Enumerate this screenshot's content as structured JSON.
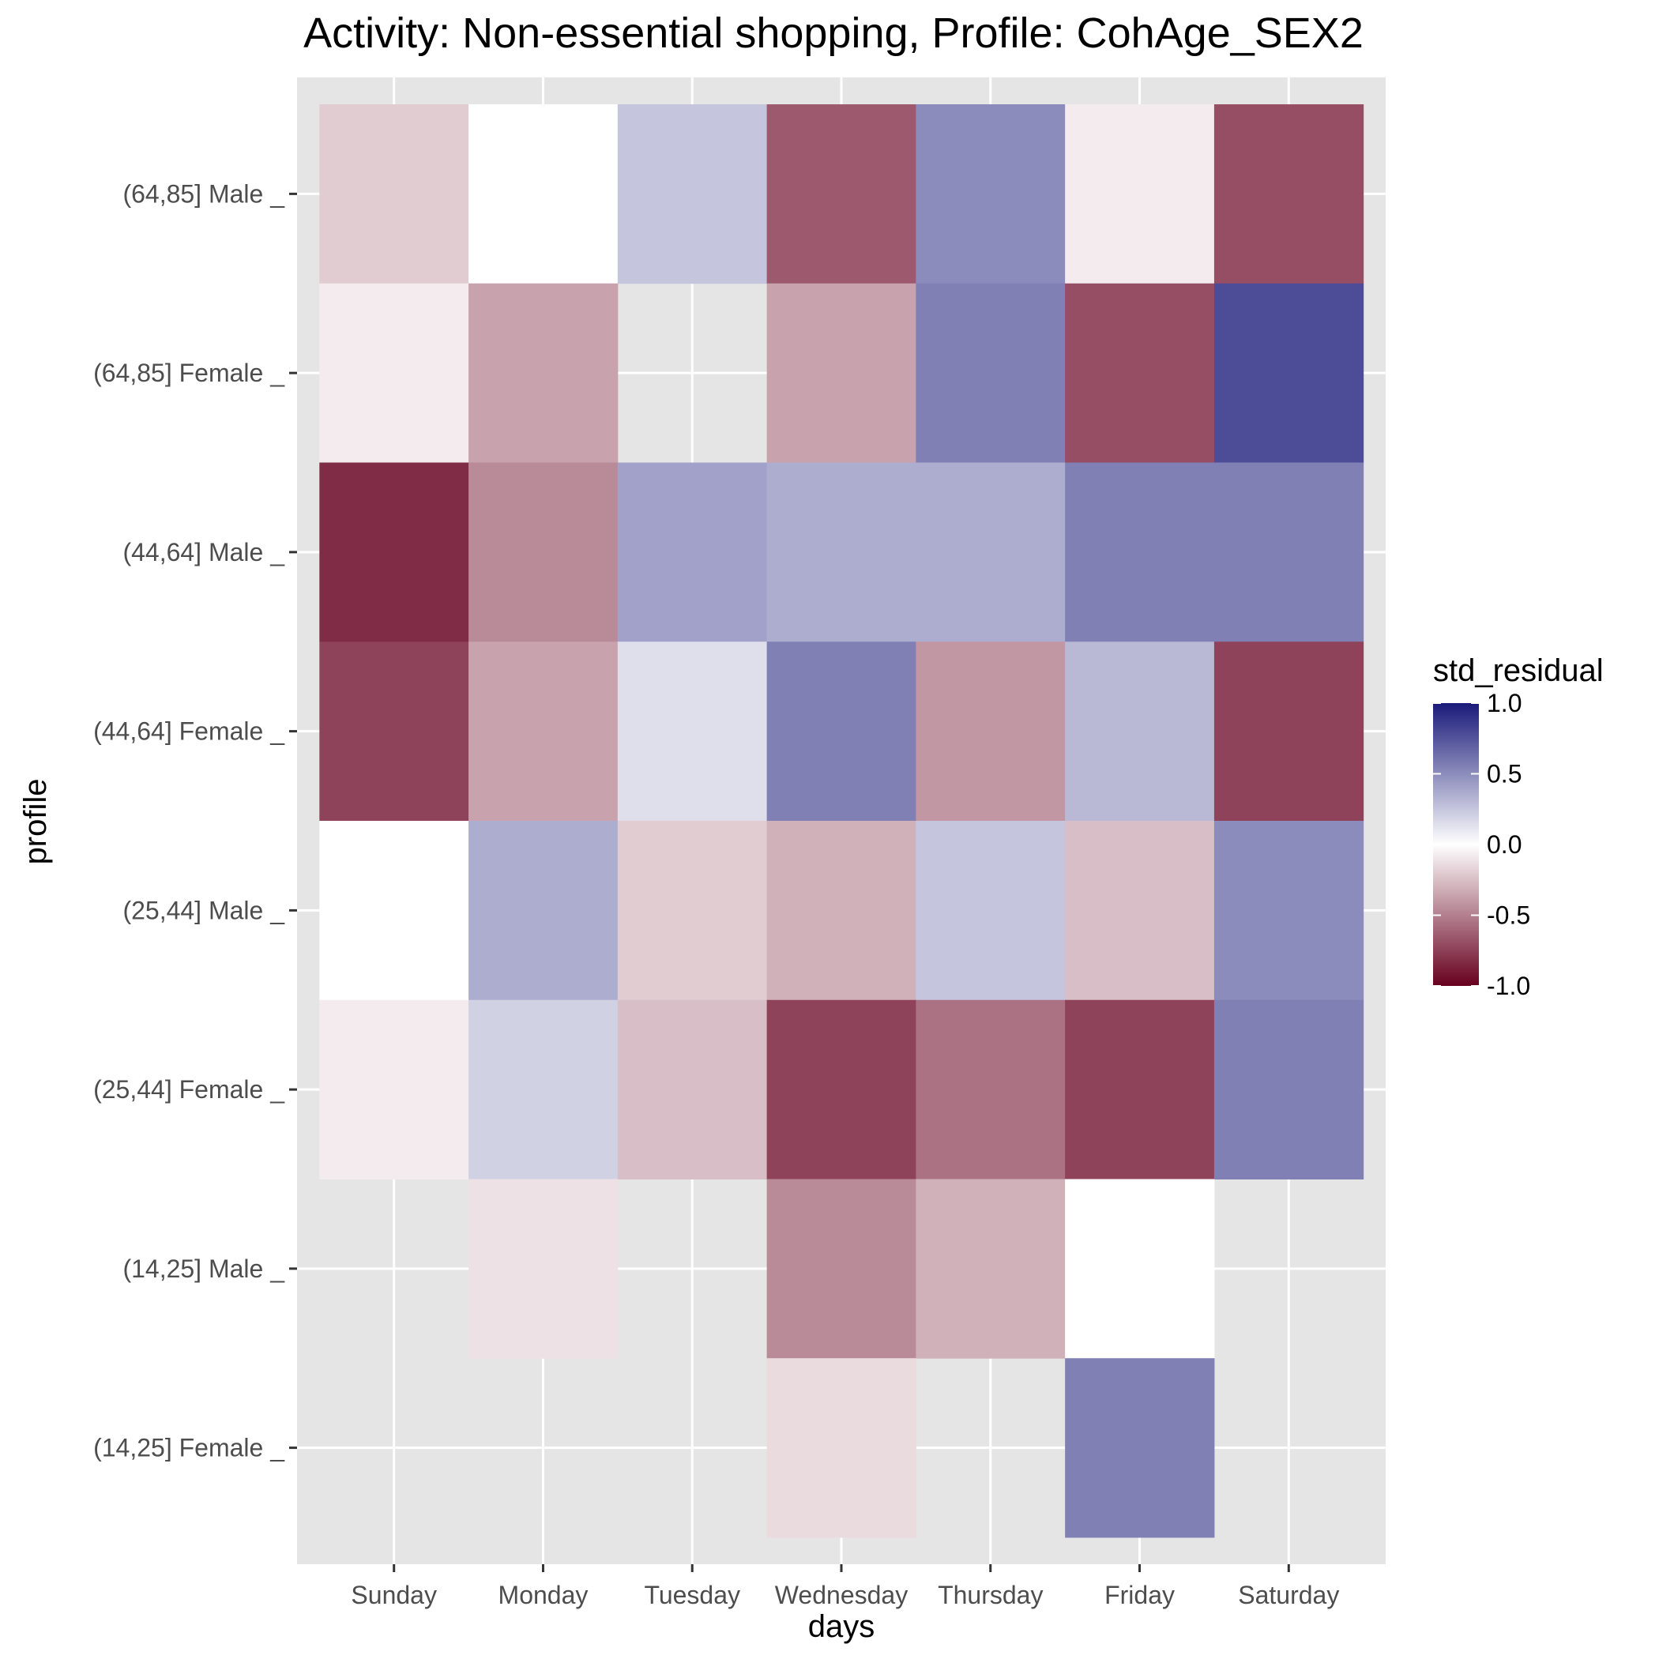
{
  "chart_data": {
    "type": "heatmap",
    "title": "Activity: Non-essential shopping, Profile: CohAge_SEX2",
    "xlabel": "days",
    "ylabel": "profile",
    "x_categories": [
      "Sunday",
      "Monday",
      "Tuesday",
      "Wednesday",
      "Thursday",
      "Friday",
      "Saturday"
    ],
    "y_categories": [
      "(64,85] Male _",
      "(64,85] Female _",
      "(44,64] Male _",
      "(44,64] Female _",
      "(25,44] Male _",
      "(25,44] Female _",
      "(14,25] Male _",
      "(14,25] Female _"
    ],
    "values": [
      [
        -0.15,
        0.0,
        0.2,
        -0.6,
        0.45,
        -0.05,
        -0.65
      ],
      [
        -0.05,
        -0.3,
        null,
        -0.3,
        0.5,
        -0.65,
        0.75
      ],
      [
        -0.8,
        -0.4,
        0.35,
        0.3,
        0.3,
        0.5,
        0.5
      ],
      [
        -0.7,
        -0.3,
        0.1,
        0.5,
        -0.35,
        0.25,
        -0.7
      ],
      [
        0.0,
        0.3,
        -0.15,
        -0.25,
        0.2,
        -0.2,
        0.45
      ],
      [
        -0.05,
        0.15,
        -0.2,
        -0.7,
        -0.5,
        -0.7,
        0.5
      ],
      [
        null,
        -0.08,
        null,
        -0.4,
        -0.25,
        0.0,
        null
      ],
      [
        null,
        null,
        null,
        -0.1,
        null,
        0.5,
        null
      ]
    ],
    "legend": {
      "title": "std_residual",
      "ticks": [
        "1.0",
        "0.5",
        "0.0",
        "-0.5",
        "-1.0"
      ],
      "range": [
        -1.0,
        1.0
      ],
      "low_color": "#67001f",
      "mid_color": "#ffffff",
      "high_color": "#1a1a7a"
    },
    "panel_background": "#e5e5e5",
    "grid_color": "#ffffff"
  }
}
